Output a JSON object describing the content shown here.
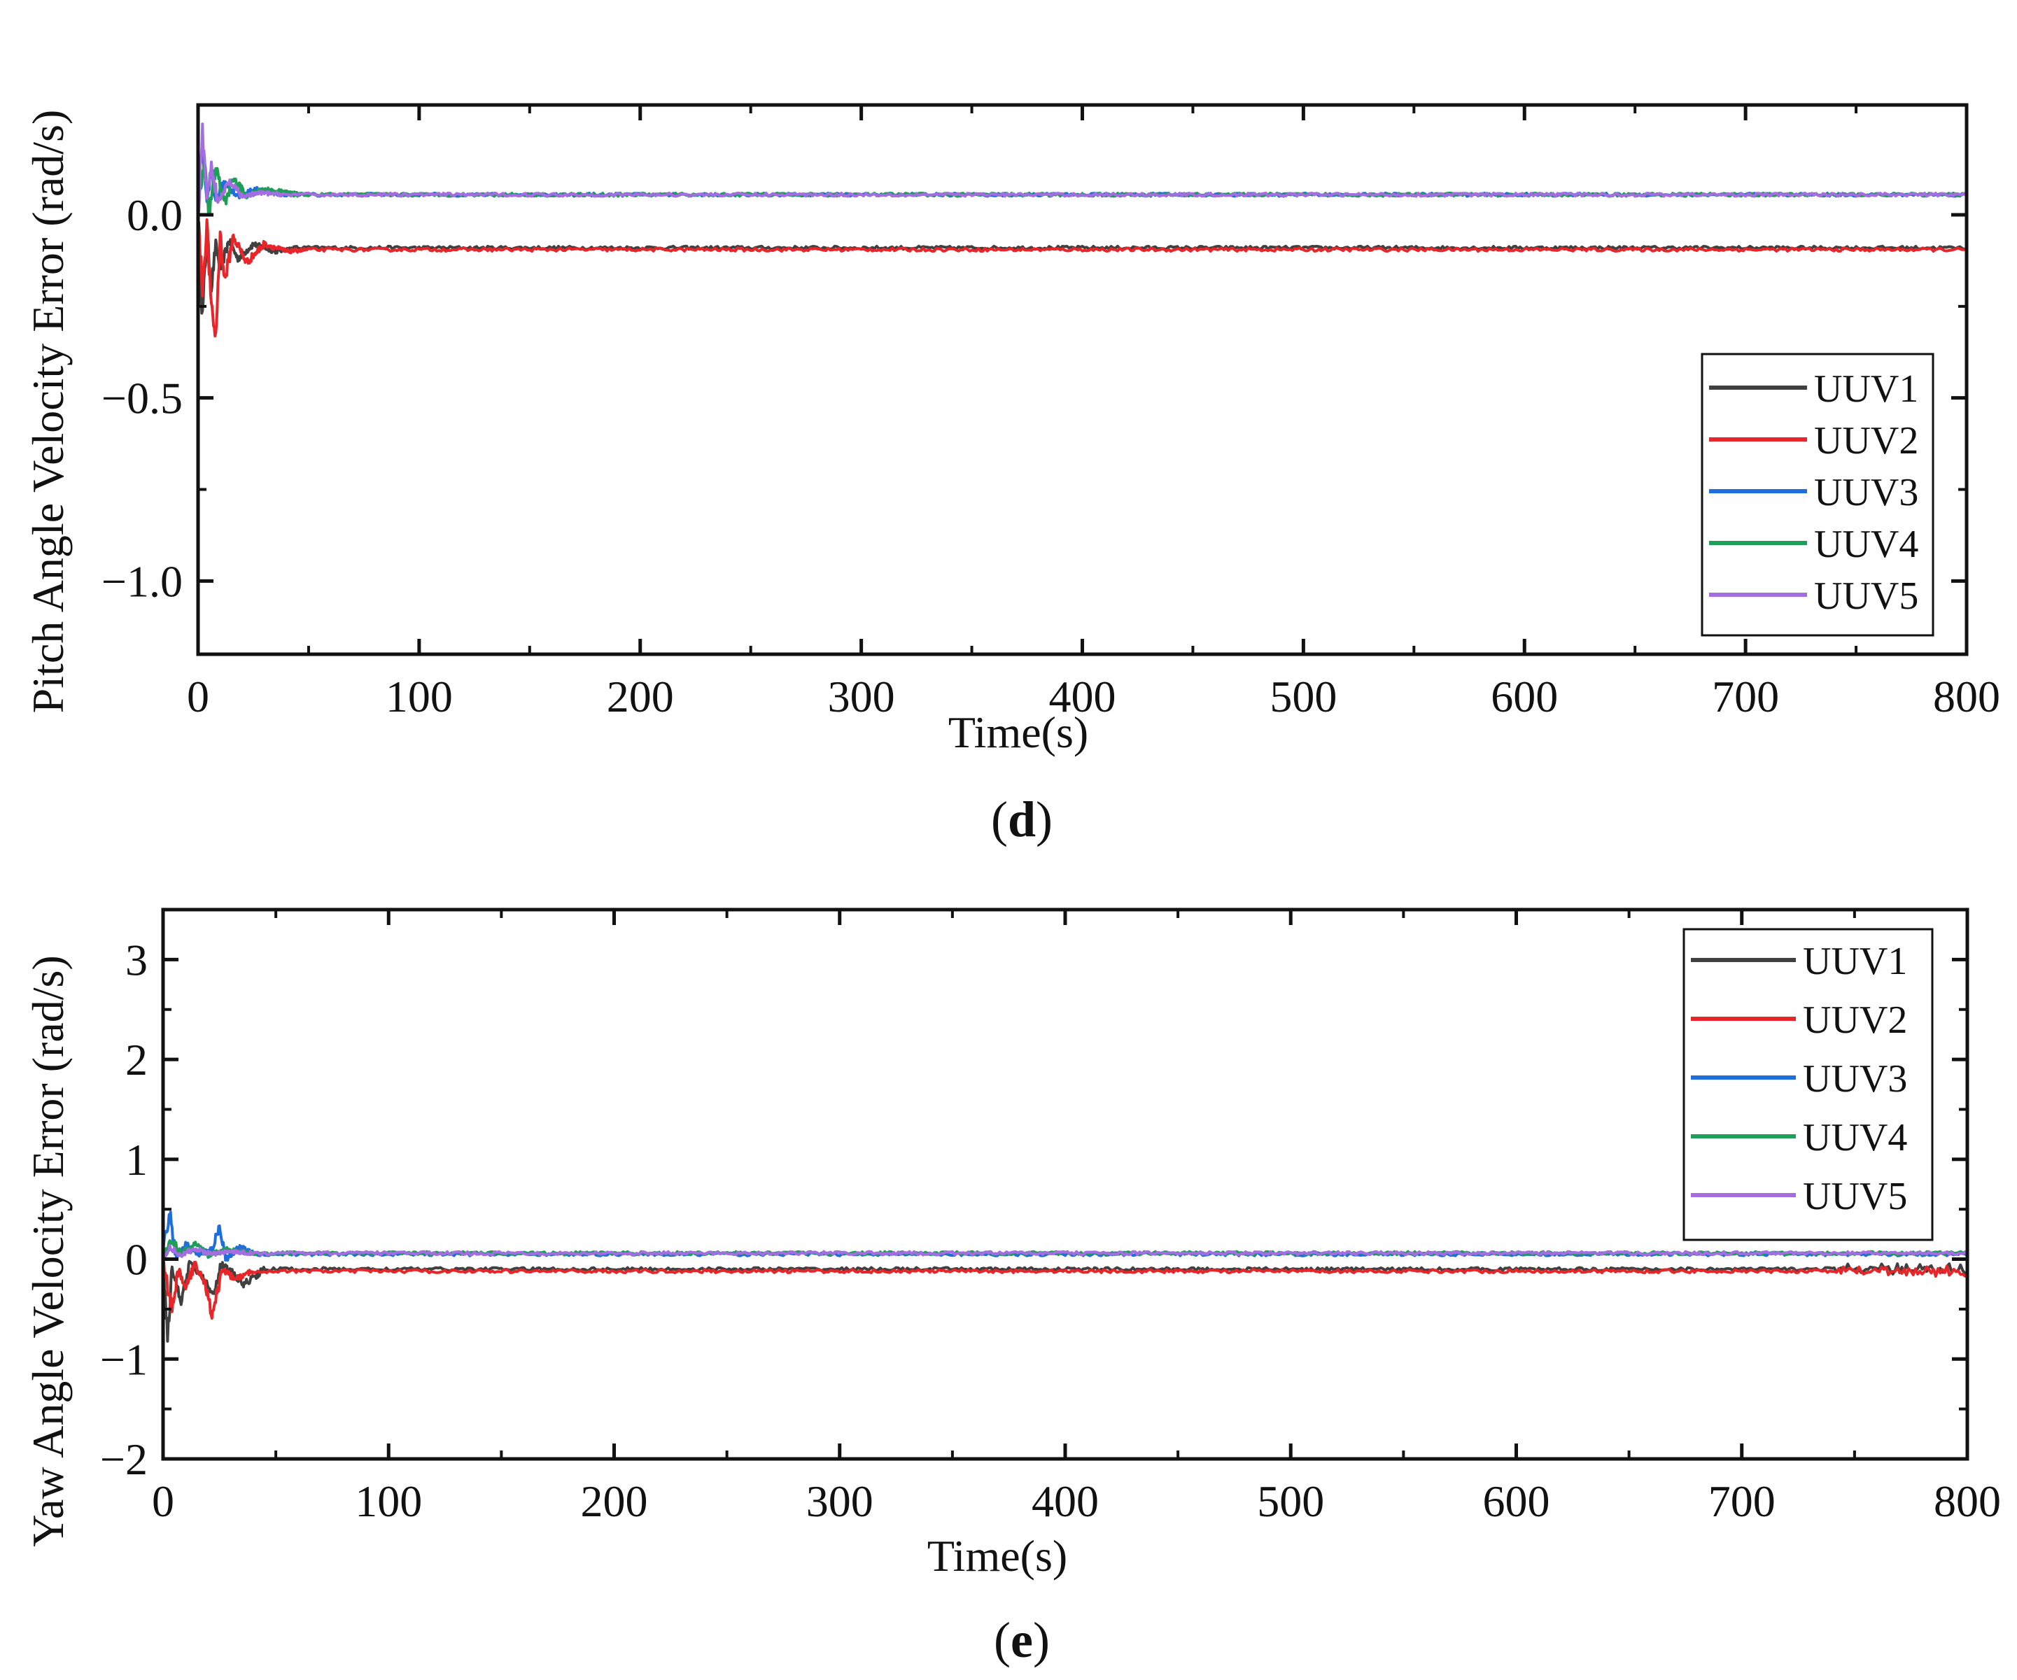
{
  "chart_data": [
    {
      "id": "d",
      "type": "line",
      "caption_letter": "d",
      "xlabel": "Time(s)",
      "ylabel": "Pitch Angle Velocity Error (rad/s)",
      "xlim": [
        0,
        800
      ],
      "ylim": [
        -1.2,
        0.3
      ],
      "xticks": [
        0,
        100,
        200,
        300,
        400,
        500,
        600,
        700,
        800
      ],
      "xtick_labels": [
        "0",
        "100",
        "200",
        "300",
        "400",
        "500",
        "600",
        "700",
        "800"
      ],
      "yticks": [
        0.0,
        -0.5,
        -1.0
      ],
      "ytick_labels": [
        "0.0",
        "−0.5",
        "−1.0"
      ],
      "legend_position": "lower-right",
      "legend": [
        "UUV1",
        "UUV2",
        "UUV3",
        "UUV4",
        "UUV5"
      ],
      "series": [
        {
          "name": "UUV1",
          "color": "#404040",
          "steady": -0.09,
          "transient": [
            [
              0,
              0.0
            ],
            [
              2,
              -0.28
            ],
            [
              4,
              -0.05
            ],
            [
              6,
              -0.2
            ],
            [
              8,
              -0.08
            ],
            [
              10,
              -0.15
            ],
            [
              14,
              -0.07
            ],
            [
              18,
              -0.12
            ],
            [
              25,
              -0.08
            ],
            [
              35,
              -0.1
            ],
            [
              45,
              -0.09
            ]
          ]
        },
        {
          "name": "UUV2",
          "color": "#e8262a",
          "steady": -0.095,
          "transient": [
            [
              0,
              -0.02
            ],
            [
              2,
              -0.2
            ],
            [
              4,
              -0.03
            ],
            [
              6,
              -0.25
            ],
            [
              8,
              -0.34
            ],
            [
              10,
              -0.05
            ],
            [
              12,
              -0.18
            ],
            [
              16,
              -0.06
            ],
            [
              22,
              -0.13
            ],
            [
              30,
              -0.08
            ],
            [
              40,
              -0.1
            ],
            [
              50,
              -0.095
            ]
          ]
        },
        {
          "name": "UUV3",
          "color": "#1e6fd9",
          "steady": 0.055,
          "transient": [
            [
              0,
              0.1
            ],
            [
              2,
              0.18
            ],
            [
              4,
              0.02
            ],
            [
              6,
              0.12
            ],
            [
              8,
              0.04
            ],
            [
              12,
              0.09
            ],
            [
              18,
              0.05
            ],
            [
              26,
              0.07
            ],
            [
              40,
              0.055
            ]
          ]
        },
        {
          "name": "UUV4",
          "color": "#1f9e57",
          "steady": 0.055,
          "transient": [
            [
              0,
              0.02
            ],
            [
              3,
              0.15
            ],
            [
              5,
              0.0
            ],
            [
              8,
              0.13
            ],
            [
              12,
              0.03
            ],
            [
              16,
              0.1
            ],
            [
              22,
              0.05
            ],
            [
              30,
              0.07
            ],
            [
              45,
              0.055
            ]
          ]
        },
        {
          "name": "UUV5",
          "color": "#a56de2",
          "steady": 0.055,
          "transient": [
            [
              0,
              0.0
            ],
            [
              2,
              0.24
            ],
            [
              4,
              0.04
            ],
            [
              6,
              0.14
            ],
            [
              9,
              0.03
            ],
            [
              14,
              0.09
            ],
            [
              20,
              0.05
            ],
            [
              28,
              0.06
            ],
            [
              40,
              0.055
            ]
          ]
        }
      ]
    },
    {
      "id": "e",
      "type": "line",
      "caption_letter": "e",
      "xlabel": "Time(s)",
      "ylabel": "Yaw Angle Velocity Error (rad/s)",
      "xlim": [
        0,
        800
      ],
      "ylim": [
        -2,
        3.5
      ],
      "xticks": [
        0,
        100,
        200,
        300,
        400,
        500,
        600,
        700,
        800
      ],
      "xtick_labels": [
        "0",
        "100",
        "200",
        "300",
        "400",
        "500",
        "600",
        "700",
        "800"
      ],
      "yticks": [
        3,
        2,
        1,
        0,
        -1,
        -2
      ],
      "ytick_labels": [
        "3",
        "2",
        "1",
        "0",
        "−1",
        "−2"
      ],
      "legend_position": "top-right",
      "legend": [
        "UUV1",
        "UUV2",
        "UUV3",
        "UUV4",
        "UUV5"
      ],
      "series": [
        {
          "name": "UUV1",
          "color": "#404040",
          "steady": -0.1,
          "transient": [
            [
              0,
              0.0
            ],
            [
              2,
              -0.75
            ],
            [
              4,
              -0.1
            ],
            [
              8,
              -0.4
            ],
            [
              12,
              -0.05
            ],
            [
              18,
              -0.2
            ],
            [
              22,
              -0.35
            ],
            [
              26,
              -0.05
            ],
            [
              36,
              -0.25
            ],
            [
              45,
              -0.1
            ]
          ]
        },
        {
          "name": "UUV2",
          "color": "#e8262a",
          "steady": -0.12,
          "transient": [
            [
              0,
              -0.05
            ],
            [
              4,
              -0.5
            ],
            [
              7,
              -0.1
            ],
            [
              10,
              -0.3
            ],
            [
              14,
              -0.05
            ],
            [
              18,
              -0.2
            ],
            [
              22,
              -0.58
            ],
            [
              26,
              -0.1
            ],
            [
              32,
              -0.2
            ],
            [
              40,
              -0.12
            ]
          ]
        },
        {
          "name": "UUV3",
          "color": "#1e6fd9",
          "steady": 0.05,
          "transient": [
            [
              0,
              0.1
            ],
            [
              3,
              0.45
            ],
            [
              6,
              0.0
            ],
            [
              10,
              0.15
            ],
            [
              16,
              0.05
            ],
            [
              22,
              0.1
            ],
            [
              25,
              0.35
            ],
            [
              28,
              0.0
            ],
            [
              34,
              0.12
            ],
            [
              42,
              0.05
            ]
          ]
        },
        {
          "name": "UUV4",
          "color": "#1f9e57",
          "steady": 0.06,
          "transient": [
            [
              0,
              0.0
            ],
            [
              4,
              0.2
            ],
            [
              8,
              0.05
            ],
            [
              14,
              0.15
            ],
            [
              20,
              0.04
            ],
            [
              28,
              0.1
            ],
            [
              40,
              0.06
            ]
          ]
        },
        {
          "name": "UUV5",
          "color": "#a56de2",
          "steady": 0.06,
          "transient": [
            [
              0,
              0.0
            ],
            [
              3,
              0.12
            ],
            [
              8,
              0.04
            ],
            [
              14,
              0.1
            ],
            [
              22,
              0.05
            ],
            [
              30,
              0.08
            ],
            [
              40,
              0.06
            ]
          ]
        }
      ]
    }
  ]
}
